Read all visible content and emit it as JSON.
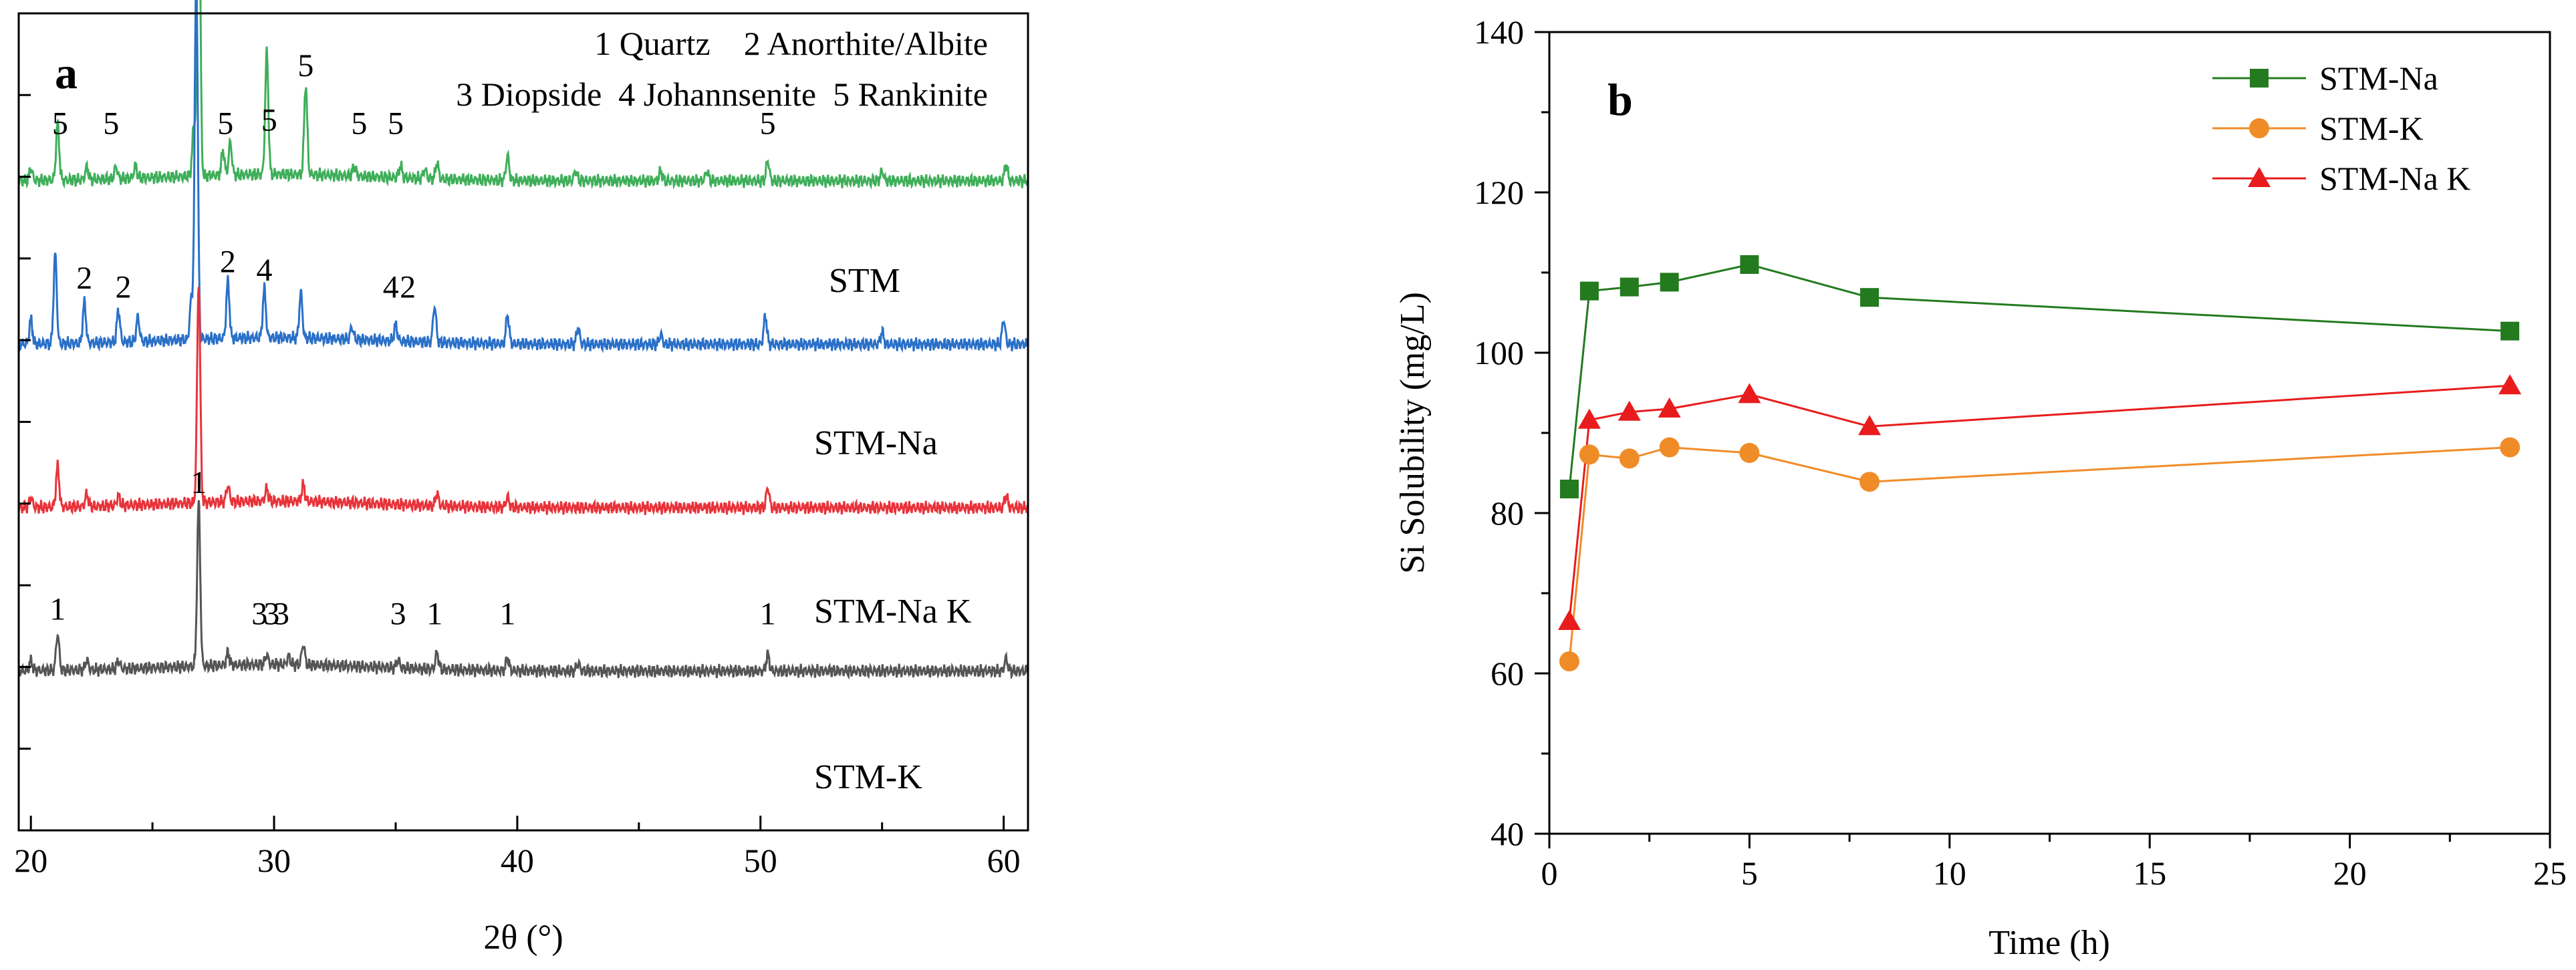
{
  "chart_data": [
    {
      "type": "line",
      "panel_label": "a",
      "xlabel": "2θ (°)",
      "ylabel": "",
      "xlim": [
        19.5,
        61
      ],
      "x_ticks": [
        "20",
        "30",
        "40",
        "50",
        "60"
      ],
      "legend_lines": [
        "1 Quartz    2 Anorthite/Albite",
        "3 Diopside  4 Johannsenite  5 Rankinite"
      ],
      "series": [
        {
          "name": "STM",
          "color": "#3fae5a",
          "baseline": 0.795,
          "peaks": [
            [
              20.0,
              0.015
            ],
            [
              21.1,
              0.07
            ],
            [
              22.3,
              0.015
            ],
            [
              23.5,
              0.015
            ],
            [
              24.3,
              0.015
            ],
            [
              26.7,
              0.06
            ],
            [
              26.9,
              0.42
            ],
            [
              27.9,
              0.03
            ],
            [
              28.2,
              0.04
            ],
            [
              29.7,
              0.15
            ],
            [
              31.3,
              0.11
            ],
            [
              33.3,
              0.012
            ],
            [
              35.2,
              0.015
            ],
            [
              36.2,
              0.012
            ],
            [
              36.7,
              0.02
            ],
            [
              39.6,
              0.03
            ],
            [
              42.4,
              0.012
            ],
            [
              45.9,
              0.012
            ],
            [
              47.8,
              0.012
            ],
            [
              50.3,
              0.025
            ],
            [
              55.0,
              0.012
            ],
            [
              60.1,
              0.02
            ]
          ],
          "annotations": [
            [
              21.2,
              "5"
            ],
            [
              23.3,
              "5"
            ],
            [
              28.0,
              "5"
            ],
            [
              29.8,
              "5"
            ],
            [
              31.3,
              "5"
            ],
            [
              33.5,
              "5"
            ],
            [
              35.0,
              "5"
            ],
            [
              50.3,
              "5"
            ]
          ]
        },
        {
          "name": "STM-Na",
          "color": "#2a70c8",
          "baseline": 0.595,
          "peaks": [
            [
              20.0,
              0.03
            ],
            [
              21.0,
              0.11
            ],
            [
              22.2,
              0.05
            ],
            [
              23.6,
              0.04
            ],
            [
              24.4,
              0.03
            ],
            [
              26.8,
              0.45
            ],
            [
              26.6,
              0.05
            ],
            [
              28.1,
              0.07
            ],
            [
              29.6,
              0.06
            ],
            [
              31.1,
              0.055
            ],
            [
              33.2,
              0.015
            ],
            [
              35.0,
              0.02
            ],
            [
              36.6,
              0.045
            ],
            [
              39.6,
              0.035
            ],
            [
              42.5,
              0.02
            ],
            [
              45.9,
              0.012
            ],
            [
              50.2,
              0.035
            ],
            [
              55.0,
              0.015
            ],
            [
              60.0,
              0.03
            ]
          ],
          "annotations": [
            [
              22.2,
              "2"
            ],
            [
              23.8,
              "2"
            ],
            [
              28.1,
              "2"
            ],
            [
              29.6,
              "4"
            ],
            [
              34.8,
              "4"
            ],
            [
              35.5,
              "2"
            ]
          ]
        },
        {
          "name": "STM-Na K",
          "color": "#e8333a",
          "baseline": 0.395,
          "peaks": [
            [
              20.0,
              0.012
            ],
            [
              21.1,
              0.05
            ],
            [
              22.3,
              0.015
            ],
            [
              23.6,
              0.012
            ],
            [
              26.9,
              0.27
            ],
            [
              28.1,
              0.02
            ],
            [
              29.7,
              0.015
            ],
            [
              31.2,
              0.02
            ],
            [
              36.7,
              0.015
            ],
            [
              39.6,
              0.012
            ],
            [
              50.3,
              0.025
            ],
            [
              60.1,
              0.015
            ]
          ],
          "annotations": []
        },
        {
          "name": "STM-K",
          "color": "#555555",
          "baseline": 0.195,
          "peaks": [
            [
              20.0,
              0.012
            ],
            [
              21.1,
              0.045
            ],
            [
              22.3,
              0.012
            ],
            [
              23.6,
              0.01
            ],
            [
              26.9,
              0.2
            ],
            [
              28.1,
              0.015
            ],
            [
              29.7,
              0.012
            ],
            [
              30.6,
              0.01
            ],
            [
              31.2,
              0.025
            ],
            [
              35.1,
              0.01
            ],
            [
              36.7,
              0.02
            ],
            [
              39.6,
              0.015
            ],
            [
              42.5,
              0.01
            ],
            [
              50.3,
              0.02
            ],
            [
              60.1,
              0.015
            ]
          ],
          "annotations": [
            [
              21.1,
              "1"
            ],
            [
              26.9,
              "1"
            ],
            [
              29.4,
              "3"
            ],
            [
              29.9,
              "3"
            ],
            [
              30.3,
              "3"
            ],
            [
              35.1,
              "3"
            ],
            [
              36.6,
              "1"
            ],
            [
              39.6,
              "1"
            ],
            [
              50.3,
              "1"
            ]
          ]
        }
      ]
    },
    {
      "type": "line",
      "panel_label": "b",
      "xlabel": "Time (h)",
      "ylabel": "Si Solubility (mg/L)",
      "xlim": [
        0,
        25
      ],
      "ylim": [
        40,
        140
      ],
      "x_ticks": [
        0,
        5,
        10,
        15,
        20,
        25
      ],
      "y_ticks": [
        40,
        60,
        80,
        100,
        120,
        140
      ],
      "x": [
        0.5,
        1,
        2,
        3,
        5,
        8,
        24
      ],
      "series": [
        {
          "name": "STM-Na",
          "color": "#237a1f",
          "marker": "square",
          "values": [
            83,
            107.7,
            108.2,
            108.8,
            111.0,
            106.9,
            102.7
          ]
        },
        {
          "name": "STM-K",
          "color": "#f08c28",
          "marker": "circle",
          "values": [
            61.5,
            87.3,
            86.8,
            88.2,
            87.5,
            83.9,
            88.2
          ]
        },
        {
          "name": "STM-Na K",
          "color": "#e81c1c",
          "marker": "triangle",
          "values": [
            66.5,
            91.6,
            92.6,
            93.0,
            94.8,
            90.8,
            95.9
          ]
        }
      ],
      "legend_position": "top-right"
    }
  ]
}
